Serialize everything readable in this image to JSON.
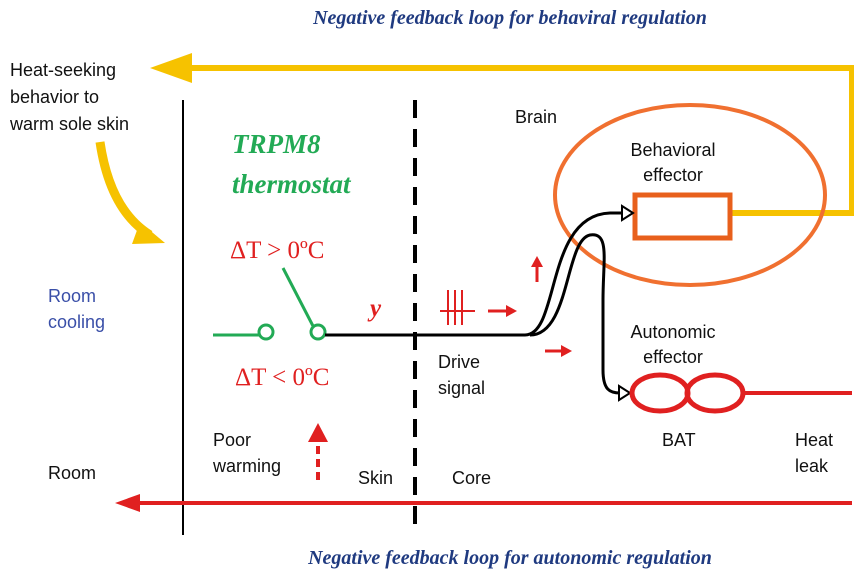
{
  "titles": {
    "top": "Negative feedback loop for behaviral regulation",
    "bottom": "Negative feedback loop for autonomic regulation"
  },
  "labels": {
    "heat_seeking": [
      "Heat-seeking",
      "behavior to",
      "warm sole skin"
    ],
    "brain": "Brain",
    "thermostat": [
      "TRPM8",
      "thermostat"
    ],
    "behavioral_effector": [
      "Behavioral",
      "effector"
    ],
    "delta_pos": "ΔT > 0ºC",
    "room_cooling": [
      "Room",
      "cooling"
    ],
    "y": "y",
    "delta_neg": "ΔT < 0ºC",
    "drive_signal": [
      "Drive",
      "signal"
    ],
    "autonomic_effector": [
      "Autonomic",
      "effector"
    ],
    "bat": "BAT",
    "heat_leak": [
      "Heat",
      "leak"
    ],
    "poor_warming": [
      "Poor",
      "warming"
    ],
    "room": "Room",
    "skin": "Skin",
    "core": "Core"
  }
}
